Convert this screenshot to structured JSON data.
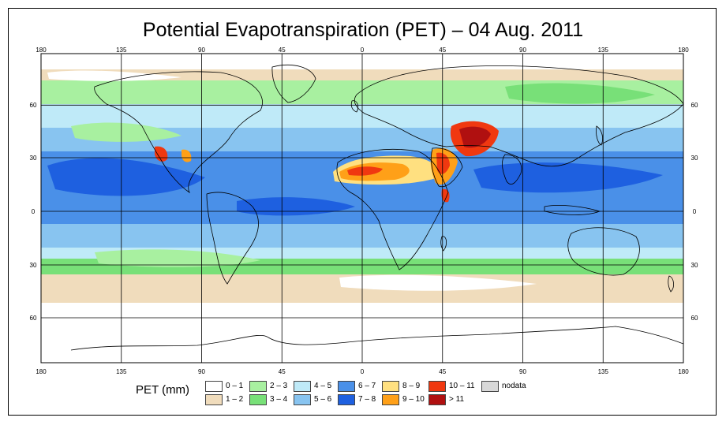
{
  "title": "Potential Evapotranspiration (PET) – 04 Aug. 2011",
  "map": {
    "lon_ticks": [
      "180",
      "135",
      "90",
      "45",
      "0",
      "45",
      "90",
      "135",
      "180"
    ],
    "lat_ticks": [
      "60",
      "30",
      "0",
      "30",
      "60"
    ],
    "projection": "equirectangular, 180W to 180E, 90S to 90N",
    "land_outline_color": "#000000"
  },
  "legend": {
    "title": "PET (mm)",
    "classes": [
      {
        "label": "0 – 1",
        "color": "#ffffff"
      },
      {
        "label": "1 – 2",
        "color": "#f0dcbc"
      },
      {
        "label": "2 – 3",
        "color": "#a8f0a0"
      },
      {
        "label": "3 – 4",
        "color": "#78e078"
      },
      {
        "label": "4 – 5",
        "color": "#bfeaf8"
      },
      {
        "label": "5 – 6",
        "color": "#88c4f0"
      },
      {
        "label": "6 – 7",
        "color": "#4a90e8"
      },
      {
        "label": "7 – 8",
        "color": "#1e60e0"
      },
      {
        "label": "8 – 9",
        "color": "#ffe080"
      },
      {
        "label": "9 – 10",
        "color": "#ffa018"
      },
      {
        "label": "10 – 11",
        "color": "#f03810"
      },
      {
        "label": "> 11",
        "color": "#b01010"
      },
      {
        "label": "nodata",
        "color": "#d8d8d8"
      }
    ]
  }
}
